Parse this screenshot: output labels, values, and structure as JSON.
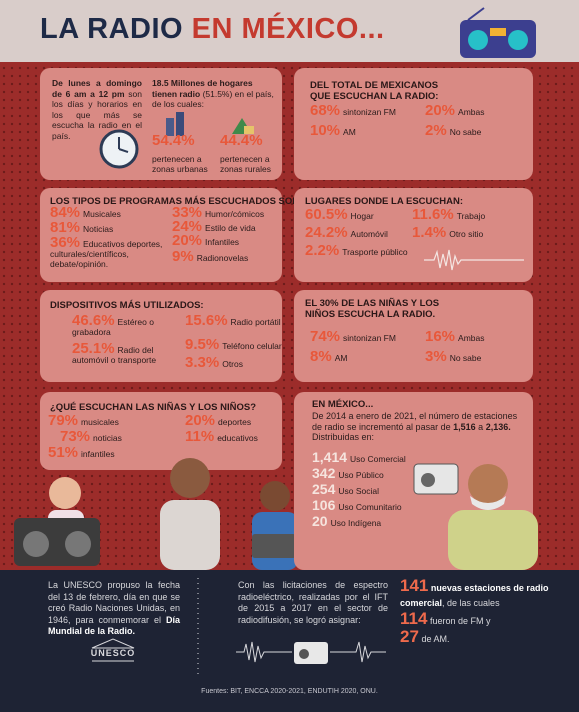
{
  "header": {
    "title_a": "LA RADIO",
    "title_b": "EN MÉXICO..."
  },
  "schedule": {
    "bold": "De lunes a domingo de 6 am a 12 pm",
    "text": "son los días y horarios en los que más se escucha la radio en el país."
  },
  "households": {
    "bold": "18.5 Millones de hogares tienen radio",
    "text": "(51.5%) en el país, de los cuales:",
    "items": [
      {
        "value": "54.4%",
        "label": "pertenecen a zonas urbanas"
      },
      {
        "value": "44.4%",
        "label": "pertenecen a zonas rurales"
      }
    ]
  },
  "listeners": {
    "title": "DEL TOTAL DE MEXICANOS QUE ESCUCHAN LA RADIO:",
    "items": [
      {
        "value": "68%",
        "label": "sintonizan FM"
      },
      {
        "value": "20%",
        "label": "Ambas"
      },
      {
        "value": "10%",
        "label": "AM"
      },
      {
        "value": "2%",
        "label": "No sabe"
      }
    ]
  },
  "programs": {
    "title": "LOS TIPOS DE PROGRAMAS MÁS ESCUCHADOS SON:",
    "items": [
      {
        "value": "84%",
        "label": "Musicales"
      },
      {
        "value": "81%",
        "label": "Noticias"
      },
      {
        "value": "36%",
        "label": "Educativos deportes, culturales/científicos, debate/opinión."
      },
      {
        "value": "33%",
        "label": "Humor/cómicos"
      },
      {
        "value": "24%",
        "label": "Estilo de vida"
      },
      {
        "value": "20%",
        "label": "Infantiles"
      },
      {
        "value": "9%",
        "label": "Radionovelas"
      }
    ]
  },
  "places": {
    "title": "LUGARES DONDE LA ESCUCHAN:",
    "items": [
      {
        "value": "60.5%",
        "label": "Hogar"
      },
      {
        "value": "11.6%",
        "label": "Trabajo"
      },
      {
        "value": "24.2%",
        "label": "Automóvil"
      },
      {
        "value": "1.4%",
        "label": "Otro sitio"
      },
      {
        "value": "2.2%",
        "label": "Trasporte público"
      }
    ]
  },
  "devices": {
    "title": "DISPOSITIVOS MÁS UTILIZADOS:",
    "items": [
      {
        "value": "46.6%",
        "label": "Estéreo o grabadora"
      },
      {
        "value": "15.6%",
        "label": "Radio portátil"
      },
      {
        "value": "25.1%",
        "label": "Radio del automóvil o transporte"
      },
      {
        "value": "9.5%",
        "label": "Teléfono celular"
      },
      {
        "value": "3.3%",
        "label": "Otros"
      }
    ]
  },
  "children": {
    "title": "EL 30% DE LAS NIÑAS Y LOS NIÑOS ESCUCHA LA RADIO.",
    "items": [
      {
        "value": "74%",
        "label": "sintonizan FM"
      },
      {
        "value": "16%",
        "label": "Ambas"
      },
      {
        "value": "8%",
        "label": "AM"
      },
      {
        "value": "3%",
        "label": "No sabe"
      }
    ]
  },
  "children_content": {
    "title": "¿QUÉ ESCUCHAN LAS NIÑAS Y LOS NIÑOS?",
    "items": [
      {
        "value": "79%",
        "label": "musicales"
      },
      {
        "value": "73%",
        "label": "noticias"
      },
      {
        "value": "51%",
        "label": "infantiles"
      },
      {
        "value": "20%",
        "label": "deportes"
      },
      {
        "value": "11%",
        "label": "educativos"
      }
    ]
  },
  "stations": {
    "title": "EN MÉXICO...",
    "text": "De 2014 a enero de 2021, el número de estaciones de radio se incrementó al pasar de",
    "from": "1,516",
    "joiner": "a",
    "to": "2,136.",
    "after": "Distribuidas en:",
    "items": [
      {
        "value": "1,414",
        "label": "Uso Comercial"
      },
      {
        "value": "342",
        "label": "Uso Público"
      },
      {
        "value": "254",
        "label": "Uso Social"
      },
      {
        "value": "106",
        "label": "Uso Comunitario"
      },
      {
        "value": "20",
        "label": "Uso Indígena"
      }
    ]
  },
  "footer": {
    "unesco": {
      "text": "La UNESCO propuso la fecha del 13 de febrero, día en que se creó Radio Naciones Unidas, en 1946, para conmemorar el",
      "bold": "Día Mundial de la Radio.",
      "logo": "UNESCO"
    },
    "tenders": {
      "text": "Con las licitaciones de espectro radioeléctrico, realizadas por el IFT de 2015 a 2017 en el sector de radiodifusión, se logró asignar:"
    },
    "assigned": {
      "n1": "141",
      "t1": "nuevas estaciones de radio comercial",
      "t2": ", de las cuales",
      "n2": "114",
      "t3": "fueron de FM y",
      "n3": "27",
      "t4": "de AM."
    },
    "sources": "Fuentes: BIT, ENCCA 2020-2021, ENDUTIH 2020, ONU."
  }
}
